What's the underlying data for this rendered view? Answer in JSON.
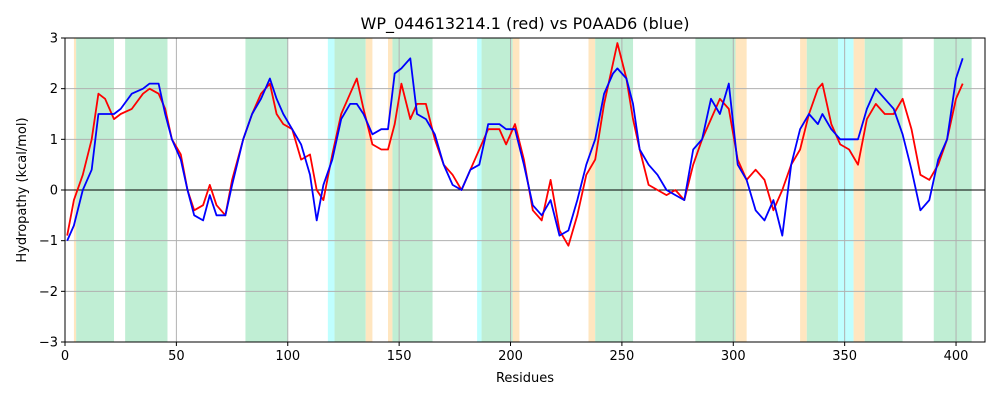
{
  "chart_data": {
    "type": "line",
    "title": "WP_044613214.1 (red) vs P0AAD6 (blue)",
    "xlabel": "Residues",
    "ylabel": "Hydropathy (kcal/mol)",
    "xlim": [
      0,
      413
    ],
    "ylim": [
      -3,
      3
    ],
    "xticks": [
      0,
      50,
      100,
      150,
      200,
      250,
      300,
      350,
      400
    ],
    "yticks": [
      -3,
      -2,
      -1,
      0,
      1,
      2,
      3
    ],
    "grid": true,
    "zero_line": true,
    "colors": {
      "red_series": "#ff0000",
      "blue_series": "#0000ff",
      "both": "#c0eed4",
      "cyan": "#c0ffff",
      "orange": "#ffe6c0",
      "grid": "#b0b0b0",
      "zero": "#000000"
    },
    "regions": [
      {
        "type": "orange",
        "start": 4,
        "end": 5
      },
      {
        "type": "both",
        "start": 5,
        "end": 22
      },
      {
        "type": "both",
        "start": 27,
        "end": 46
      },
      {
        "type": "both",
        "start": 81,
        "end": 100
      },
      {
        "type": "cyan",
        "start": 118,
        "end": 121
      },
      {
        "type": "both",
        "start": 121,
        "end": 135
      },
      {
        "type": "orange",
        "start": 135,
        "end": 138
      },
      {
        "type": "orange",
        "start": 145,
        "end": 147
      },
      {
        "type": "both",
        "start": 147,
        "end": 165
      },
      {
        "type": "cyan",
        "start": 185,
        "end": 187
      },
      {
        "type": "both",
        "start": 187,
        "end": 201
      },
      {
        "type": "orange",
        "start": 201,
        "end": 204
      },
      {
        "type": "orange",
        "start": 235,
        "end": 238
      },
      {
        "type": "both",
        "start": 238,
        "end": 255
      },
      {
        "type": "both",
        "start": 283,
        "end": 301
      },
      {
        "type": "orange",
        "start": 301,
        "end": 306
      },
      {
        "type": "orange",
        "start": 330,
        "end": 333
      },
      {
        "type": "both",
        "start": 333,
        "end": 347
      },
      {
        "type": "cyan",
        "start": 347,
        "end": 354
      },
      {
        "type": "orange",
        "start": 354,
        "end": 359
      },
      {
        "type": "both",
        "start": 359,
        "end": 376
      },
      {
        "type": "both",
        "start": 390,
        "end": 407
      }
    ],
    "series": [
      {
        "color": "#ff0000",
        "x": [
          1,
          4,
          8,
          12,
          15,
          18,
          22,
          25,
          30,
          35,
          38,
          42,
          45,
          48,
          52,
          55,
          58,
          62,
          65,
          68,
          72,
          75,
          80,
          84,
          88,
          92,
          95,
          98,
          102,
          106,
          110,
          113,
          116,
          120,
          124,
          128,
          131,
          134,
          138,
          142,
          145,
          148,
          151,
          155,
          158,
          162,
          166,
          170,
          174,
          178,
          182,
          186,
          190,
          195,
          198,
          202,
          206,
          210,
          214,
          218,
          222,
          226,
          230,
          234,
          238,
          242,
          246,
          248,
          252,
          255,
          258,
          262,
          266,
          270,
          274,
          278,
          282,
          286,
          290,
          294,
          298,
          302,
          306,
          310,
          314,
          318,
          322,
          326,
          330,
          334,
          338,
          340,
          344,
          348,
          352,
          356,
          360,
          364,
          368,
          372,
          376,
          380,
          384,
          388,
          392,
          396,
          400,
          403
        ],
        "y": [
          -0.9,
          -0.2,
          0.3,
          1.0,
          1.9,
          1.8,
          1.4,
          1.5,
          1.6,
          1.9,
          2.0,
          1.9,
          1.6,
          1.0,
          0.7,
          0.0,
          -0.4,
          -0.3,
          0.1,
          -0.3,
          -0.5,
          0.2,
          1.0,
          1.5,
          1.9,
          2.1,
          1.5,
          1.3,
          1.2,
          0.6,
          0.7,
          0.0,
          -0.2,
          0.7,
          1.5,
          1.9,
          2.2,
          1.6,
          0.9,
          0.8,
          0.8,
          1.3,
          2.1,
          1.4,
          1.7,
          1.7,
          1.0,
          0.5,
          0.3,
          0.0,
          0.4,
          0.8,
          1.2,
          1.2,
          0.9,
          1.3,
          0.6,
          -0.4,
          -0.6,
          0.2,
          -0.8,
          -1.1,
          -0.5,
          0.3,
          0.6,
          1.7,
          2.5,
          2.9,
          2.2,
          1.4,
          0.8,
          0.1,
          0.0,
          -0.1,
          0.0,
          -0.2,
          0.5,
          1.0,
          1.4,
          1.8,
          1.6,
          0.6,
          0.2,
          0.4,
          0.2,
          -0.4,
          0.0,
          0.5,
          0.8,
          1.5,
          2.0,
          2.1,
          1.3,
          0.9,
          0.8,
          0.5,
          1.4,
          1.7,
          1.5,
          1.5,
          1.8,
          1.2,
          0.3,
          0.2,
          0.5,
          1.0,
          1.8,
          2.1
        ]
      },
      {
        "color": "#0000ff",
        "x": [
          1,
          4,
          8,
          12,
          15,
          18,
          22,
          25,
          30,
          35,
          38,
          42,
          45,
          48,
          52,
          55,
          58,
          62,
          65,
          68,
          72,
          75,
          80,
          84,
          88,
          92,
          95,
          98,
          102,
          106,
          110,
          113,
          116,
          120,
          124,
          128,
          131,
          134,
          138,
          142,
          145,
          148,
          151,
          155,
          158,
          162,
          166,
          170,
          174,
          178,
          182,
          186,
          190,
          195,
          198,
          202,
          206,
          210,
          214,
          218,
          222,
          226,
          230,
          234,
          238,
          242,
          246,
          248,
          252,
          255,
          258,
          262,
          266,
          270,
          274,
          278,
          282,
          286,
          290,
          294,
          298,
          302,
          306,
          310,
          314,
          318,
          322,
          326,
          330,
          334,
          338,
          340,
          344,
          348,
          352,
          356,
          360,
          364,
          368,
          372,
          376,
          380,
          384,
          388,
          392,
          396,
          400,
          403
        ],
        "y": [
          -1.0,
          -0.7,
          0.0,
          0.4,
          1.5,
          1.5,
          1.5,
          1.6,
          1.9,
          2.0,
          2.1,
          2.1,
          1.5,
          1.0,
          0.6,
          0.0,
          -0.5,
          -0.6,
          -0.1,
          -0.5,
          -0.5,
          0.1,
          1.0,
          1.5,
          1.8,
          2.2,
          1.8,
          1.5,
          1.2,
          0.9,
          0.3,
          -0.6,
          0.1,
          0.6,
          1.4,
          1.7,
          1.7,
          1.5,
          1.1,
          1.2,
          1.2,
          2.3,
          2.4,
          2.6,
          1.5,
          1.4,
          1.1,
          0.5,
          0.1,
          0.0,
          0.4,
          0.5,
          1.3,
          1.3,
          1.2,
          1.2,
          0.5,
          -0.3,
          -0.5,
          -0.2,
          -0.9,
          -0.8,
          -0.2,
          0.5,
          1.0,
          1.9,
          2.3,
          2.4,
          2.2,
          1.7,
          0.8,
          0.5,
          0.3,
          0.0,
          -0.1,
          -0.2,
          0.8,
          1.0,
          1.8,
          1.5,
          2.1,
          0.5,
          0.2,
          -0.4,
          -0.6,
          -0.2,
          -0.9,
          0.5,
          1.2,
          1.5,
          1.3,
          1.5,
          1.2,
          1.0,
          1.0,
          1.0,
          1.6,
          2.0,
          1.8,
          1.6,
          1.1,
          0.4,
          -0.4,
          -0.2,
          0.6,
          1.0,
          2.2,
          2.6
        ]
      }
    ]
  }
}
